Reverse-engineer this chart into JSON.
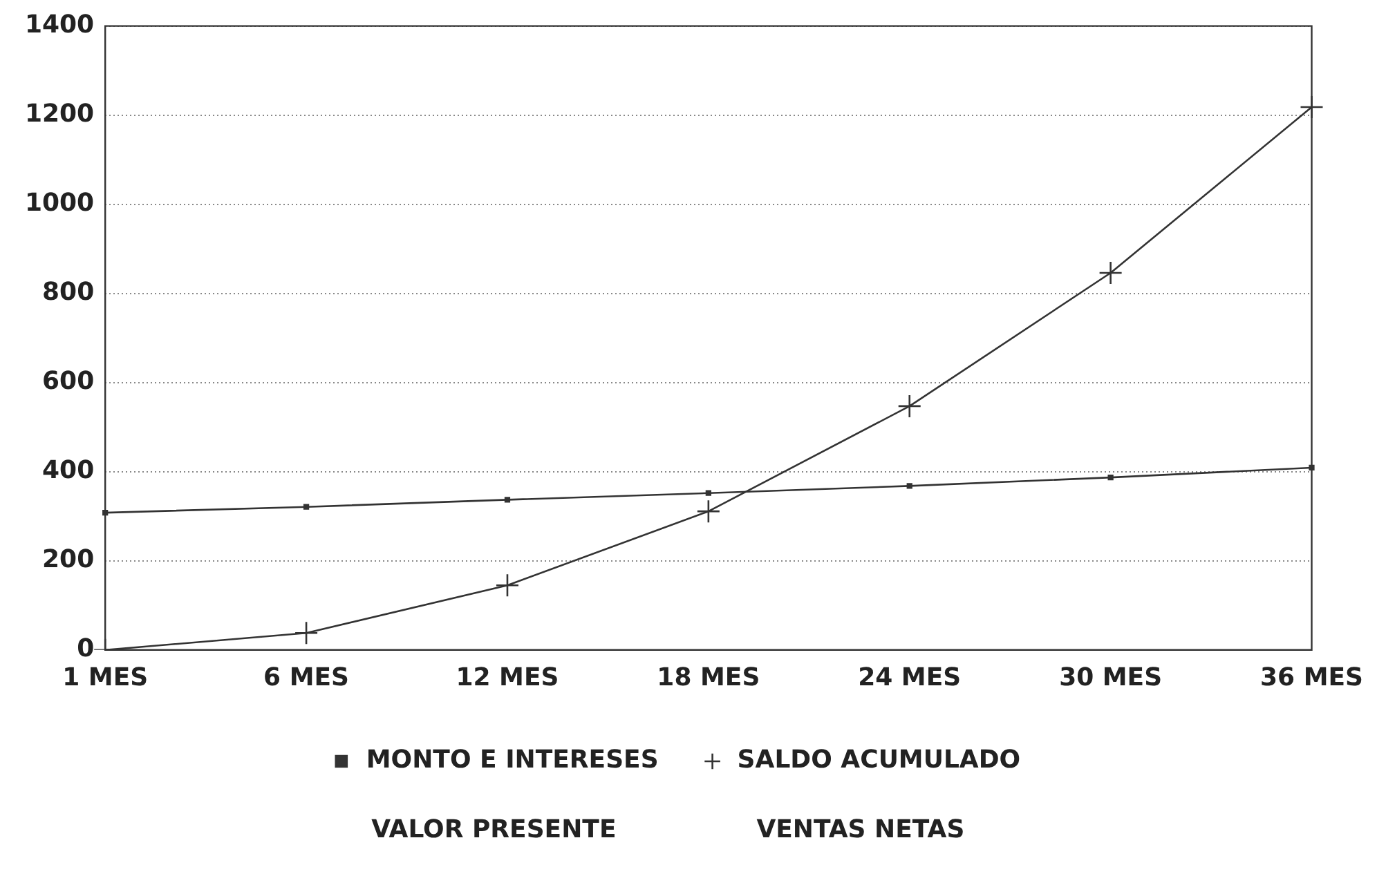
{
  "chart_data": {
    "type": "line",
    "categories": [
      "1 MES",
      "6 MES",
      "12 MES",
      "18 MES",
      "24 MES",
      "30 MES",
      "36 MES"
    ],
    "series": [
      {
        "name": "MONTO E INTERESES",
        "color": "#333333",
        "marker": "square",
        "values": [
          308,
          321,
          337,
          352,
          368,
          387,
          409
        ]
      },
      {
        "name": "SALDO ACUMULADO",
        "color": "#333333",
        "marker": "cross",
        "values": [
          0,
          38,
          145,
          311,
          547,
          846,
          1218
        ]
      }
    ],
    "ylim": [
      0,
      1400
    ],
    "yticks": [
      0,
      200,
      400,
      600,
      800,
      1000,
      1200,
      1400
    ],
    "grid": "y",
    "legend": "bottom",
    "line_style": "solid",
    "annotations": [
      "VALOR PRESENTE",
      "VENTAS NETAS"
    ]
  }
}
